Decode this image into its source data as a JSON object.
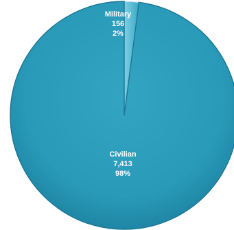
{
  "chart_data": {
    "type": "pie",
    "slices": [
      {
        "name": "Military",
        "value_text": "156",
        "percent_text": "2%",
        "value": 156,
        "color": "#4fb7d2"
      },
      {
        "name": "Civilian",
        "value_text": "7,413",
        "percent_text": "98%",
        "value": 7413,
        "color": "#2a9ab9"
      }
    ],
    "edge_color": "#1d7896",
    "highlight_color": "#bfe7f2",
    "title": "",
    "legend": "none"
  }
}
